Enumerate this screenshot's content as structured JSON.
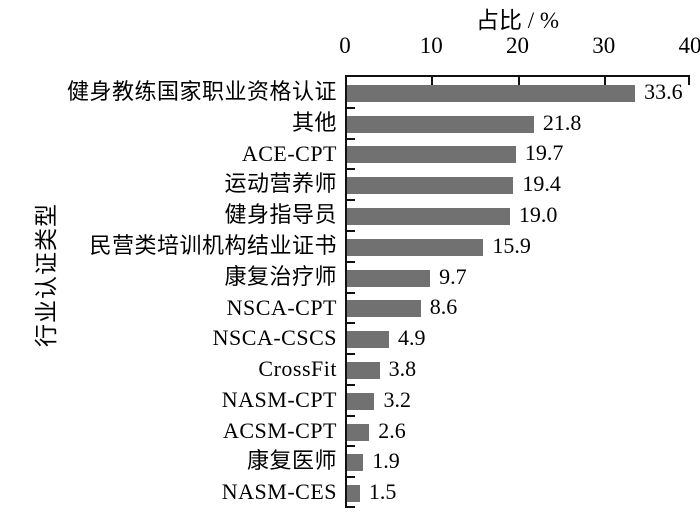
{
  "chart": {
    "title": "占比 / %",
    "ylabel": "行业认证类型"
  },
  "chart_data": {
    "type": "bar",
    "orientation": "horizontal",
    "title": "占比 / %",
    "xlabel": "占比 / %",
    "ylabel": "行业认证类型",
    "xlim": [
      0,
      40
    ],
    "xticks": [
      "0",
      "10",
      "20",
      "30",
      "40"
    ],
    "grid": false,
    "legend": false,
    "bar_color": "#717171",
    "axis_color": "#111111",
    "categories": [
      "健身教练国家职业资格认证",
      "其他",
      "ACE-CPT",
      "运动营养师",
      "健身指导员",
      "民营类培训机构结业证书",
      "康复治疗师",
      "NSCA-CPT",
      "NSCA-CSCS",
      "CrossFit",
      "NASM-CPT",
      "ACSM-CPT",
      "康复医师",
      "NASM-CES"
    ],
    "values": [
      33.6,
      21.8,
      19.7,
      19.4,
      19.0,
      15.9,
      9.7,
      8.6,
      4.9,
      3.8,
      3.2,
      2.6,
      1.9,
      1.5
    ],
    "value_labels": [
      "33.6",
      "21.8",
      "19.7",
      "19.4",
      "19.0",
      "15.9",
      "9.7",
      "8.6",
      "4.9",
      "3.8",
      "3.2",
      "2.6",
      "1.9",
      "1.5"
    ]
  }
}
